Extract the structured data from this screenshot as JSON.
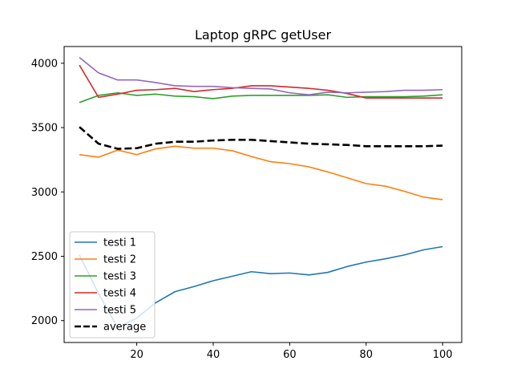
{
  "chart_data": {
    "type": "line",
    "title": "Laptop gRPC getUser",
    "xlabel": "",
    "ylabel": "",
    "xlim": [
      1,
      105
    ],
    "ylim": [
      1830,
      4130
    ],
    "x_ticks": [
      20,
      40,
      60,
      80,
      100
    ],
    "x_tick_labels": [
      "20",
      "40",
      "60",
      "80",
      "100"
    ],
    "y_ticks": [
      2000,
      2500,
      3000,
      3500,
      4000
    ],
    "y_tick_labels": [
      "2000",
      "2500",
      "3000",
      "3500",
      "4000"
    ],
    "grid": false,
    "legend_position": "lower-left",
    "x": [
      5,
      10,
      15,
      20,
      25,
      30,
      35,
      40,
      45,
      50,
      55,
      60,
      65,
      70,
      75,
      80,
      85,
      90,
      95,
      100
    ],
    "series": [
      {
        "name": "testi 1",
        "color": "#1f77b4",
        "dash": "solid",
        "values": [
          2510,
          2210,
          1945,
          2020,
          2140,
          2225,
          2265,
          2310,
          2345,
          2380,
          2365,
          2370,
          2355,
          2375,
          2420,
          2455,
          2480,
          2510,
          2550,
          2575
        ]
      },
      {
        "name": "testi 2",
        "color": "#ff7f0e",
        "dash": "solid",
        "values": [
          3290,
          3270,
          3325,
          3290,
          3335,
          3355,
          3340,
          3340,
          3320,
          3275,
          3235,
          3220,
          3195,
          3155,
          3110,
          3065,
          3045,
          3005,
          2960,
          2940
        ]
      },
      {
        "name": "testi 3",
        "color": "#2ca02c",
        "dash": "solid",
        "values": [
          3695,
          3750,
          3770,
          3750,
          3760,
          3745,
          3740,
          3725,
          3745,
          3750,
          3750,
          3750,
          3750,
          3755,
          3735,
          3740,
          3740,
          3740,
          3745,
          3755
        ]
      },
      {
        "name": "testi 4",
        "color": "#d62728",
        "dash": "solid",
        "values": [
          3985,
          3735,
          3760,
          3790,
          3795,
          3805,
          3780,
          3795,
          3805,
          3825,
          3825,
          3815,
          3805,
          3790,
          3765,
          3730,
          3730,
          3730,
          3730,
          3730
        ]
      },
      {
        "name": "testi 5",
        "color": "#9467bd",
        "dash": "solid",
        "values": [
          4045,
          3925,
          3870,
          3870,
          3850,
          3825,
          3820,
          3820,
          3810,
          3805,
          3800,
          3770,
          3755,
          3775,
          3770,
          3775,
          3780,
          3790,
          3790,
          3795
        ]
      },
      {
        "name": "average",
        "color": "#000000",
        "dash": "dashed",
        "values": [
          3505,
          3375,
          3335,
          3340,
          3375,
          3390,
          3390,
          3400,
          3405,
          3405,
          3395,
          3385,
          3375,
          3370,
          3365,
          3355,
          3355,
          3355,
          3355,
          3360
        ]
      }
    ]
  }
}
